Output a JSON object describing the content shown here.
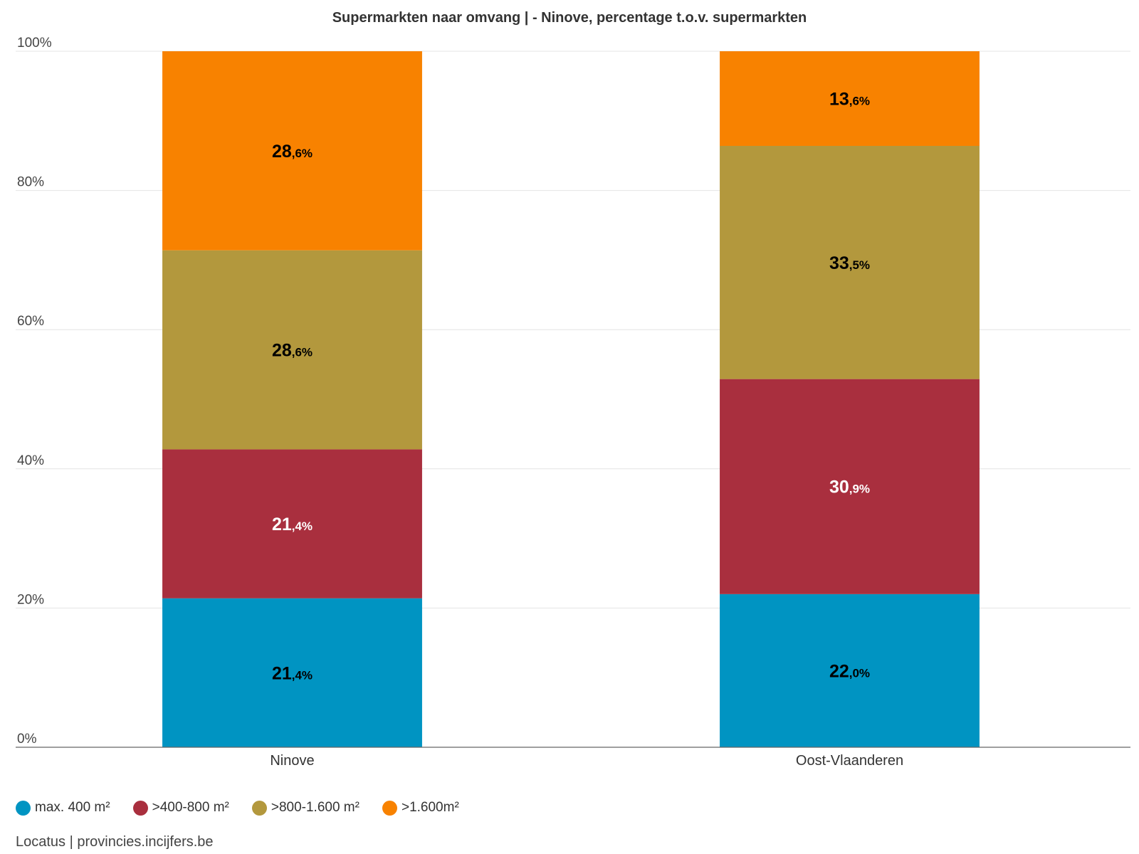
{
  "chart_data": {
    "type": "bar",
    "stacked": true,
    "title": "Supermarkten naar omvang | - Ninove, percentage t.o.v. supermarkten",
    "categories": [
      "Ninove",
      "Oost-Vlaanderen"
    ],
    "y_ticks": [
      "0%",
      "20%",
      "40%",
      "60%",
      "80%",
      "100%"
    ],
    "ylim": [
      0,
      100
    ],
    "grid": true,
    "legend_position": "bottom-left",
    "series": [
      {
        "name": "max. 400 m²",
        "color": "#0094c2",
        "values": [
          21.4,
          22.0
        ],
        "labels_int": [
          "21",
          "22"
        ],
        "labels_dec": [
          ",4%",
          ",0%"
        ],
        "label_color": "#000000"
      },
      {
        "name": ">400-800 m²",
        "color": "#a92f3e",
        "values": [
          21.4,
          30.9
        ],
        "labels_int": [
          "21",
          "30"
        ],
        "labels_dec": [
          ",4%",
          ",9%"
        ],
        "label_color": "#ffffff"
      },
      {
        "name": ">800-1.600 m²",
        "color": "#b3983d",
        "values": [
          28.6,
          33.5
        ],
        "labels_int": [
          "28",
          "33"
        ],
        "labels_dec": [
          ",6%",
          ",5%"
        ],
        "label_color": "#000000"
      },
      {
        "name": ">1.600m²",
        "color": "#f88200",
        "values": [
          28.6,
          13.6
        ],
        "labels_int": [
          "28",
          "13"
        ],
        "labels_dec": [
          ",6%",
          ",6%"
        ],
        "label_color": "#000000"
      }
    ]
  },
  "source": "Locatus | provincies.incijfers.be"
}
